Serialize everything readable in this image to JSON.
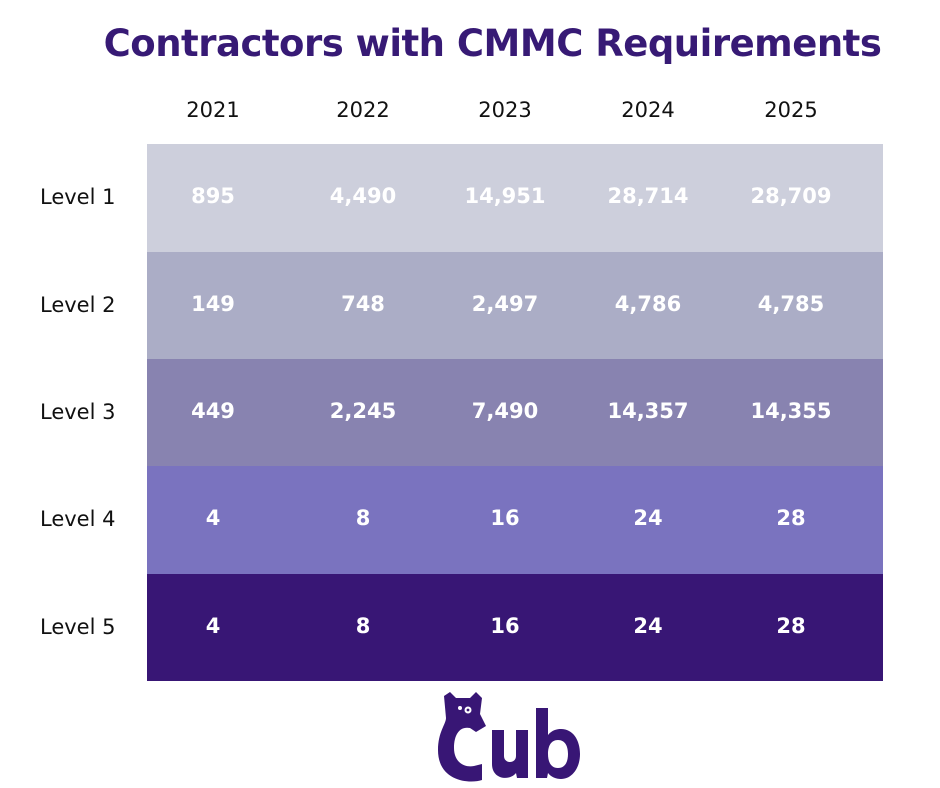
{
  "chart_data": {
    "type": "table",
    "title": "Contractors with CMMC Requirements",
    "columns": [
      "2021",
      "2022",
      "2023",
      "2024",
      "2025"
    ],
    "rows": [
      {
        "label": "Level 1",
        "values": [
          "895",
          "4,490",
          "14,951",
          "28,714",
          "28,709"
        ],
        "color": "#cdcfdc"
      },
      {
        "label": "Level 2",
        "values": [
          "149",
          "748",
          "2,497",
          "4,786",
          "4,785"
        ],
        "color": "#abadc6"
      },
      {
        "label": "Level 3",
        "values": [
          "449",
          "2,245",
          "7,490",
          "14,357",
          "14,355"
        ],
        "color": "#8883b0"
      },
      {
        "label": "Level 4",
        "values": [
          "4",
          "8",
          "16",
          "24",
          "28"
        ],
        "color": "#7a73bf"
      },
      {
        "label": "Level 5",
        "values": [
          "4",
          "8",
          "16",
          "24",
          "28"
        ],
        "color": "#381675"
      }
    ]
  },
  "logo": {
    "text": "Cub",
    "color": "#381675"
  }
}
